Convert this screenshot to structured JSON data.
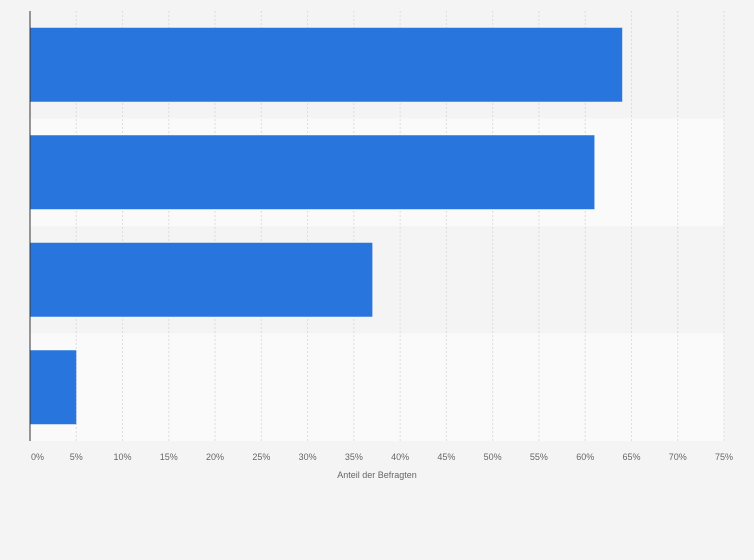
{
  "chart_data": {
    "type": "bar",
    "orientation": "horizontal",
    "categories": [
      "",
      "",
      "",
      ""
    ],
    "values": [
      64,
      61,
      37,
      5
    ],
    "xlabel": "Anteil der Befragten",
    "ylabel": "",
    "xlim": [
      0,
      75
    ],
    "x_ticks": [
      0,
      5,
      10,
      15,
      20,
      25,
      30,
      35,
      40,
      45,
      50,
      55,
      60,
      65,
      70,
      75
    ],
    "tick_suffix": "%",
    "grid": true,
    "bar_color": "#2876dd",
    "band_colors": [
      "#f4f4f4",
      "#fafafa"
    ],
    "gridline_color": "#dddddd",
    "axis_color": "#333333"
  }
}
